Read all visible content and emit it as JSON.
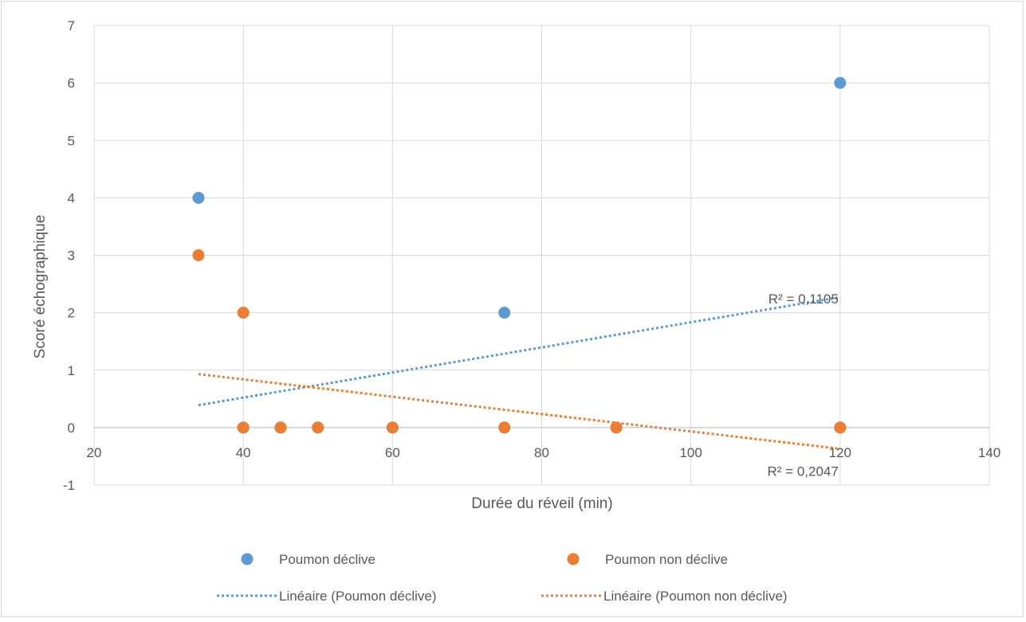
{
  "chart_data": {
    "type": "scatter",
    "title": "",
    "xlabel": "Durée du réveil (min)",
    "ylabel": "Scoré échographique",
    "xlim": [
      20,
      140
    ],
    "ylim": [
      -1,
      7
    ],
    "x_ticks": [
      20,
      40,
      60,
      80,
      100,
      120,
      140
    ],
    "y_ticks": [
      -1,
      0,
      1,
      2,
      3,
      4,
      5,
      6,
      7
    ],
    "grid": true,
    "legend_position": "bottom",
    "series": [
      {
        "name": "Poumon déclive",
        "color": "#5b9bd5",
        "points": [
          [
            34,
            4
          ],
          [
            75,
            2
          ],
          [
            120,
            6
          ],
          [
            40,
            0
          ],
          [
            45,
            0
          ],
          [
            50,
            0
          ],
          [
            60,
            0
          ],
          [
            75,
            0
          ],
          [
            90,
            0
          ],
          [
            120,
            0
          ]
        ]
      },
      {
        "name": "Poumon non déclive",
        "color": "#ed7d31",
        "points": [
          [
            34,
            3
          ],
          [
            40,
            2
          ],
          [
            40,
            0
          ],
          [
            45,
            0
          ],
          [
            50,
            0
          ],
          [
            60,
            0
          ],
          [
            75,
            0
          ],
          [
            90,
            0
          ],
          [
            120,
            0
          ]
        ]
      }
    ],
    "trendlines": [
      {
        "name": "Linéaire (Poumon déclive)",
        "color": "#5b9bd5",
        "x_range": [
          34,
          120
        ],
        "y_start": 0.39,
        "y_end": 2.27,
        "r2_label": "R² = 0,1105"
      },
      {
        "name": "Linéaire (Poumon non déclive)",
        "color": "#ed7d31",
        "x_range": [
          34,
          120
        ],
        "y_start": 0.93,
        "y_end": -0.37,
        "r2_label": "R² = 0,2047"
      }
    ]
  }
}
